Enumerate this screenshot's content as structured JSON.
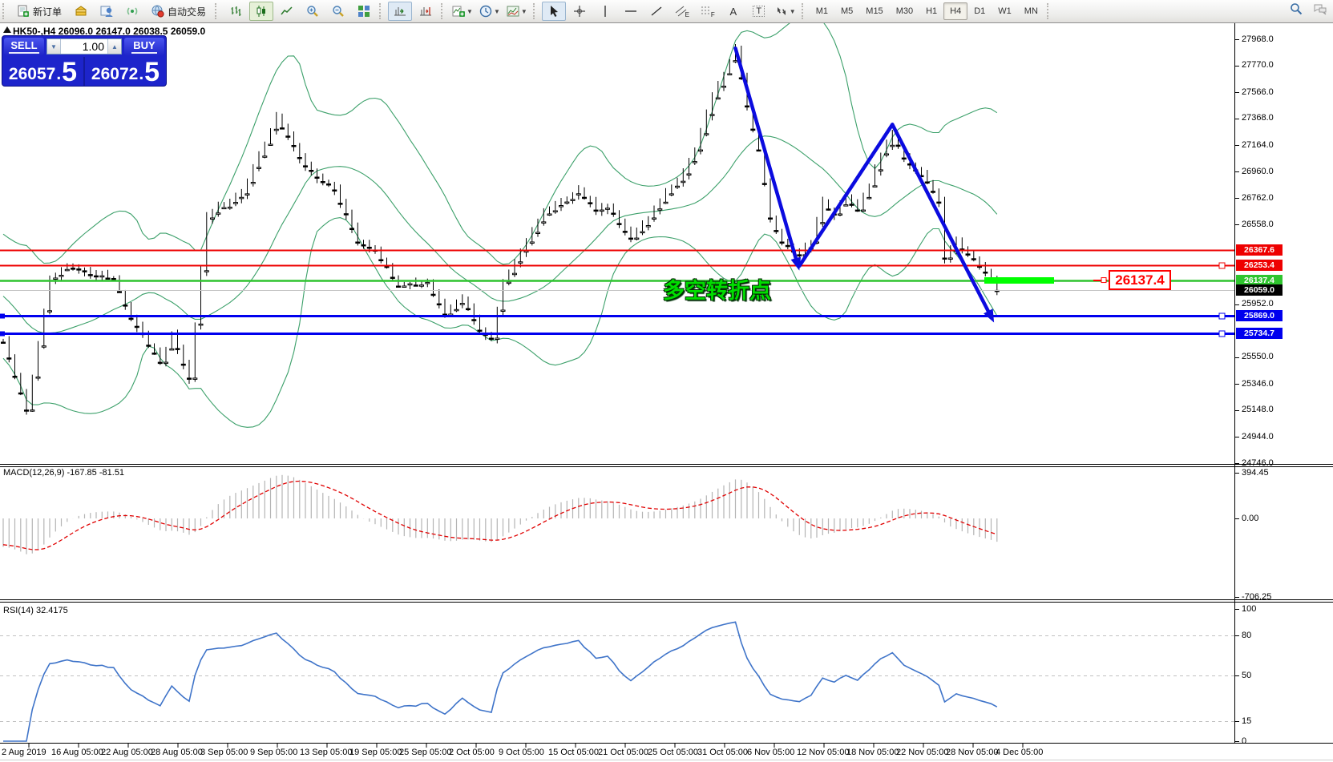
{
  "toolbar": {
    "new_order": "新订单",
    "autotrade": "自动交易",
    "timeframes": [
      "M1",
      "M5",
      "M15",
      "M30",
      "H1",
      "H4",
      "D1",
      "W1",
      "MN"
    ],
    "active_timeframe": "H4",
    "channel_tag": "E",
    "fibo_tag": "F",
    "text_tool": "A",
    "label_tool": "T"
  },
  "chart_header": {
    "title": "HK50-,H4  26096.0 26147.0 26038.5 26059.0"
  },
  "trade_panel": {
    "sell_label": "SELL",
    "buy_label": "BUY",
    "volume": "1.00",
    "sell_price_main": "26057",
    "sell_price_frac": "5",
    "buy_price_main": "26072",
    "buy_price_frac": "5"
  },
  "price_axis": {
    "ticks": [
      "27968.0",
      "27770.0",
      "27566.0",
      "27368.0",
      "27164.0",
      "26960.0",
      "26762.0",
      "26558.0",
      "25952.0",
      "25550.0",
      "25346.0",
      "25148.0",
      "24944.0",
      "24746.0"
    ],
    "current_price": "26059.0"
  },
  "levels": [
    {
      "label": "26367.6",
      "price": 26367.6,
      "color": "#ee0000",
      "width": 2,
      "right_handle": false,
      "left_handle": false
    },
    {
      "label": "26253.4",
      "price": 26253.4,
      "color": "#ee0000",
      "width": 2,
      "right_handle": true,
      "left_handle": false
    },
    {
      "label": "26137.4",
      "price": 26137.4,
      "color": "#2fc42f",
      "width": 2.5,
      "right_handle": false,
      "left_handle": false
    },
    {
      "label": "25869.0",
      "price": 25869.0,
      "color": "#0000ee",
      "width": 3,
      "right_handle": true,
      "left_handle": true
    },
    {
      "label": "25734.7",
      "price": 25734.7,
      "color": "#0000ee",
      "width": 3,
      "right_handle": true,
      "left_handle": true
    }
  ],
  "annotations": {
    "turning_point_text": "多空转折点",
    "turning_point_color": "#00dd00",
    "price_callout": "26137.4",
    "highlight_color": "#00ff00",
    "highlight_price": 26137.4
  },
  "indicators": {
    "macd": {
      "label": "MACD(12,26,9)",
      "hist_value": "-167.85",
      "signal_value": "-81.51",
      "axis": [
        "394.45",
        "0.00",
        "-706.25"
      ]
    },
    "rsi": {
      "label": "RSI(14)",
      "value": "32.4175",
      "axis": [
        "100",
        "80",
        "50",
        "15",
        "0"
      ],
      "guides": [
        80,
        50,
        15
      ]
    }
  },
  "time_axis": [
    "2 Aug 2019",
    "16 Aug 05:00",
    "22 Aug 05:00",
    "28 Aug 05:00",
    "3 Sep 05:00",
    "9 Sep 05:00",
    "13 Sep 05:00",
    "19 Sep 05:00",
    "25 Sep 05:00",
    "2 Oct 05:00",
    "9 Oct 05:00",
    "15 Oct 05:00",
    "21 Oct 05:00",
    "25 Oct 05:00",
    "31 Oct 05:00",
    "6 Nov 05:00",
    "12 Nov 05:00",
    "18 Nov 05:00",
    "22 Nov 05:00",
    "28 Nov 05:00",
    "4 Dec 05:00"
  ],
  "chart_data": {
    "type": "candlestick",
    "symbol": "HK50-",
    "timeframe": "H4",
    "current_ohlc": {
      "open": 26096.0,
      "high": 26147.0,
      "low": 26038.5,
      "close": 26059.0
    },
    "bid": 26057.5,
    "ask": 26072.5,
    "price_range": [
      24746.0,
      27968.0
    ],
    "overlay": "Bollinger Bands",
    "candle_count": 172,
    "close_path": [
      [
        0,
        25666
      ],
      [
        4,
        25150
      ],
      [
        8,
        26153
      ],
      [
        11,
        26250
      ],
      [
        15,
        26180
      ],
      [
        19,
        26150
      ],
      [
        22,
        25848
      ],
      [
        27,
        25513
      ],
      [
        29,
        25727
      ],
      [
        32,
        25392
      ],
      [
        35,
        26610
      ],
      [
        41,
        26793
      ],
      [
        47,
        27371
      ],
      [
        52,
        27006
      ],
      [
        57,
        26823
      ],
      [
        61,
        26427
      ],
      [
        64,
        26366
      ],
      [
        68,
        26092
      ],
      [
        73,
        26122
      ],
      [
        76,
        25879
      ],
      [
        79,
        26001
      ],
      [
        82,
        25757
      ],
      [
        84,
        25696
      ],
      [
        86,
        26122
      ],
      [
        90,
        26427
      ],
      [
        93,
        26640
      ],
      [
        96,
        26731
      ],
      [
        99,
        26823
      ],
      [
        102,
        26670
      ],
      [
        104,
        26701
      ],
      [
        108,
        26457
      ],
      [
        111,
        26610
      ],
      [
        114,
        26793
      ],
      [
        117,
        26945
      ],
      [
        119,
        27127
      ],
      [
        122,
        27523
      ],
      [
        124,
        27706
      ],
      [
        126,
        27889
      ],
      [
        128,
        27462
      ],
      [
        130,
        27127
      ],
      [
        132,
        26610
      ],
      [
        134,
        26427
      ],
      [
        137,
        26330
      ],
      [
        139,
        26427
      ],
      [
        141,
        26731
      ],
      [
        143,
        26640
      ],
      [
        145,
        26762
      ],
      [
        147,
        26670
      ],
      [
        149,
        26854
      ],
      [
        151,
        27097
      ],
      [
        153,
        27249
      ],
      [
        155,
        27066
      ],
      [
        157,
        26975
      ],
      [
        159,
        26884
      ],
      [
        161,
        26731
      ],
      [
        162,
        26305
      ],
      [
        164,
        26427
      ],
      [
        166,
        26336
      ],
      [
        168,
        26244
      ],
      [
        170,
        26153
      ],
      [
        171,
        26059
      ]
    ],
    "trendlines": [
      {
        "from_bar": 126,
        "from_price": 27900,
        "to_bar": 137,
        "to_price": 26210,
        "arrow": true
      },
      {
        "from_bar": 137,
        "from_price": 26245,
        "to_bar": 153,
        "to_price": 27320,
        "arrow": false
      },
      {
        "from_bar": 153,
        "from_price": 27320,
        "to_bar": 170.5,
        "to_price": 25815,
        "arrow": true
      }
    ],
    "highlight_segment": {
      "price": 26137.4,
      "from_bar": 168.8,
      "to_bar": 180.8
    },
    "macd_panel_range": [
      -706.25,
      394.45
    ],
    "rsi_panel_range": [
      0,
      100
    ]
  }
}
